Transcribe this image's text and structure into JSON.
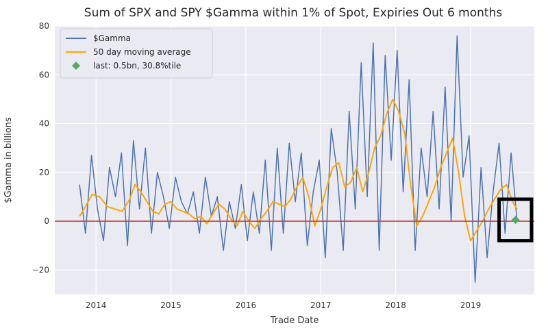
{
  "chart_data": {
    "type": "line",
    "title": "Sum of SPX and SPY $Gamma within 1% of Spot, Expiries Out 6 months",
    "xlabel": "Trade Date",
    "ylabel": "$Gamma in billions",
    "xlim": [
      2013.45,
      2019.85
    ],
    "ylim": [
      -30,
      80
    ],
    "x_ticks": [
      {
        "value": 2014,
        "label": "2014"
      },
      {
        "value": 2015,
        "label": "2015"
      },
      {
        "value": 2016,
        "label": "2016"
      },
      {
        "value": 2017,
        "label": "2017"
      },
      {
        "value": 2018,
        "label": "2018"
      },
      {
        "value": 2019,
        "label": "2019"
      }
    ],
    "y_ticks": [
      {
        "value": -20,
        "label": "−20"
      },
      {
        "value": 0,
        "label": "0"
      },
      {
        "value": 20,
        "label": "20"
      },
      {
        "value": 40,
        "label": "40"
      },
      {
        "value": 60,
        "label": "60"
      },
      {
        "value": 80,
        "label": "80"
      }
    ],
    "grid": true,
    "legend_position": "top-left",
    "series": [
      {
        "name": "$Gamma",
        "color": "#4c72b0",
        "x": [
          2013.78,
          2013.86,
          2013.94,
          2014.02,
          2014.1,
          2014.18,
          2014.26,
          2014.34,
          2014.42,
          2014.5,
          2014.58,
          2014.66,
          2014.74,
          2014.82,
          2014.9,
          2014.98,
          2015.06,
          2015.14,
          2015.22,
          2015.3,
          2015.38,
          2015.46,
          2015.54,
          2015.62,
          2015.7,
          2015.78,
          2015.86,
          2015.94,
          2016.02,
          2016.1,
          2016.18,
          2016.26,
          2016.34,
          2016.42,
          2016.5,
          2016.58,
          2016.66,
          2016.74,
          2016.82,
          2016.9,
          2016.98,
          2017.06,
          2017.14,
          2017.22,
          2017.3,
          2017.38,
          2017.46,
          2017.54,
          2017.62,
          2017.7,
          2017.78,
          2017.86,
          2017.94,
          2018.02,
          2018.1,
          2018.18,
          2018.26,
          2018.34,
          2018.42,
          2018.5,
          2018.58,
          2018.66,
          2018.74,
          2018.82,
          2018.9,
          2018.98,
          2019.06,
          2019.14,
          2019.22,
          2019.3,
          2019.38,
          2019.46,
          2019.54,
          2019.62
        ],
        "y": [
          15,
          -5,
          27,
          5,
          -8,
          22,
          10,
          28,
          -10,
          33,
          5,
          30,
          -5,
          20,
          10,
          -3,
          18,
          8,
          3,
          12,
          -5,
          18,
          2,
          10,
          -12,
          8,
          -3,
          15,
          -8,
          12,
          -5,
          25,
          -12,
          30,
          -5,
          32,
          8,
          28,
          -10,
          12,
          25,
          -15,
          38,
          20,
          -12,
          45,
          5,
          65,
          10,
          73,
          -12,
          68,
          25,
          70,
          12,
          58,
          -12,
          30,
          10,
          45,
          5,
          55,
          0,
          76,
          18,
          35,
          -25,
          22,
          -15,
          12,
          32,
          -5,
          28,
          0
        ]
      },
      {
        "name": "50 day moving average",
        "color": "#ffa500",
        "x": [
          2013.78,
          2013.86,
          2013.95,
          2014.05,
          2014.15,
          2014.25,
          2014.35,
          2014.45,
          2014.52,
          2014.6,
          2014.68,
          2014.76,
          2014.84,
          2014.92,
          2015.0,
          2015.08,
          2015.16,
          2015.24,
          2015.32,
          2015.4,
          2015.48,
          2015.56,
          2015.64,
          2015.72,
          2015.8,
          2015.88,
          2015.96,
          2016.04,
          2016.12,
          2016.2,
          2016.28,
          2016.36,
          2016.44,
          2016.52,
          2016.6,
          2016.68,
          2016.76,
          2016.84,
          2016.92,
          2017.0,
          2017.08,
          2017.16,
          2017.24,
          2017.32,
          2017.4,
          2017.48,
          2017.56,
          2017.64,
          2017.72,
          2017.8,
          2017.88,
          2017.96,
          2018.04,
          2018.12,
          2018.2,
          2018.28,
          2018.36,
          2018.44,
          2018.52,
          2018.6,
          2018.68,
          2018.76,
          2018.84,
          2018.92,
          2019.0,
          2019.08,
          2019.16,
          2019.24,
          2019.32,
          2019.4,
          2019.48,
          2019.56,
          2019.62
        ],
        "y": [
          2,
          6,
          11,
          10,
          6,
          5,
          4,
          9,
          15,
          12,
          8,
          4,
          3,
          7,
          8,
          5,
          4,
          3,
          1,
          2,
          -1,
          3,
          7,
          5,
          1,
          -2,
          4,
          0,
          -3,
          1,
          4,
          8,
          7,
          6,
          9,
          14,
          18,
          10,
          -2,
          5,
          14,
          22,
          24,
          14,
          16,
          22,
          12,
          20,
          30,
          35,
          44,
          50,
          45,
          36,
          15,
          -2,
          2,
          8,
          14,
          22,
          28,
          34,
          20,
          2,
          -8,
          -4,
          0,
          5,
          9,
          13,
          15,
          8,
          5
        ]
      },
      {
        "name": "last: 0.5bn, 30.8%tile",
        "type": "scatter",
        "marker": "diamond",
        "color": "#55a868",
        "x": [
          2019.6
        ],
        "y": [
          0.5
        ]
      }
    ],
    "reference_lines": [
      {
        "axis": "y",
        "value": 0,
        "color": "#c0392b"
      }
    ],
    "annotations": [
      {
        "type": "rectangle",
        "color": "#000000",
        "x_range": [
          2019.38,
          2019.85
        ],
        "y_range": [
          -8,
          9
        ]
      }
    ]
  }
}
